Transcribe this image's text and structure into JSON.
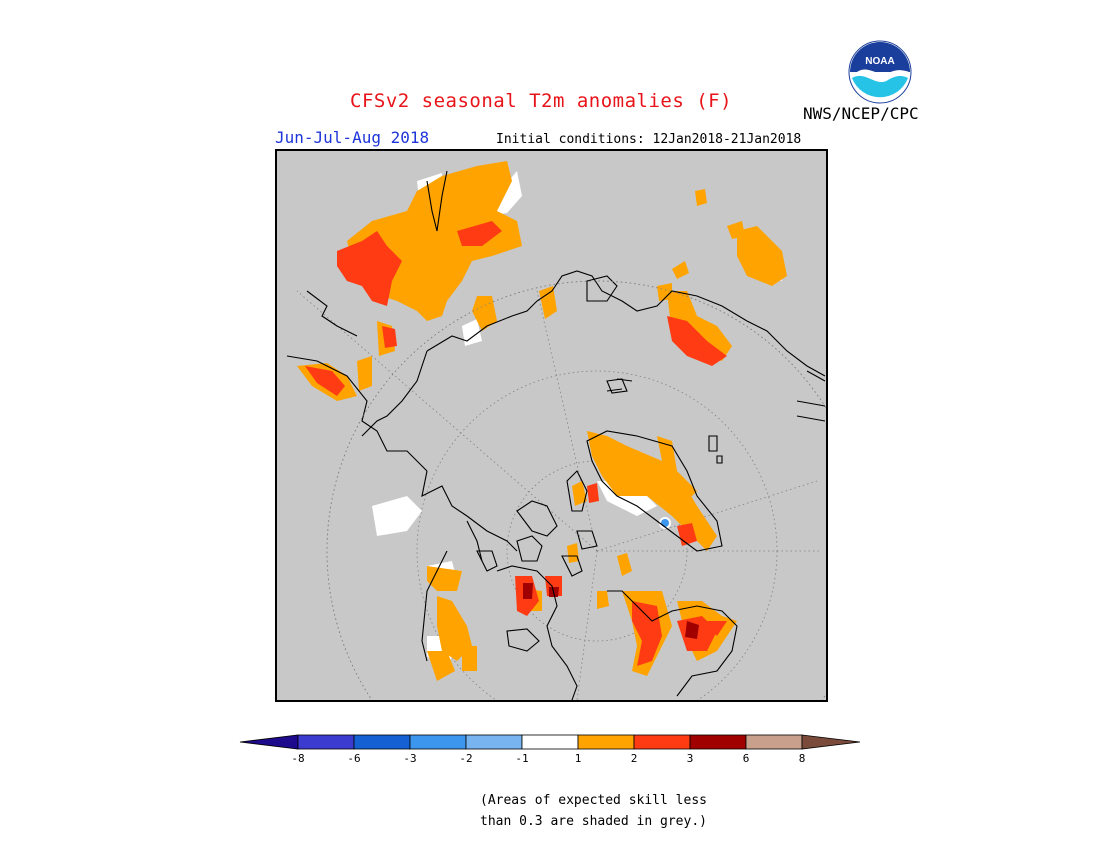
{
  "title": "CFSv2 seasonal T2m anomalies (F)",
  "agency": "NWS/NCEP/CPC",
  "season": "Jun-Jul-Aug 2018",
  "initial_conditions": "Initial conditions: 12Jan2018-21Jan2018",
  "logo_text": "NOAA",
  "legend": {
    "colors": [
      "#1e0a8c",
      "#3b3bd0",
      "#1560d2",
      "#3c96ee",
      "#78b4f0",
      "#ffffff",
      "#ffa300",
      "#ff3b14",
      "#a00000",
      "#c8a08c",
      "#7a4b3a"
    ],
    "ticks": [
      "-8",
      "-6",
      "-3",
      "-2",
      "-1",
      "1",
      "2",
      "3",
      "6",
      "8"
    ]
  },
  "note_line1": "(Areas of expected skill less",
  "note_line2": "than 0.3 are shaded in grey.)",
  "map_colors": {
    "grey": "#c8c8c8",
    "weak_warm": "#ffa300",
    "mid_warm": "#ff3b14",
    "strong_warm": "#a00000",
    "near_zero": "#ffffff",
    "cold": "#3c96ee"
  }
}
